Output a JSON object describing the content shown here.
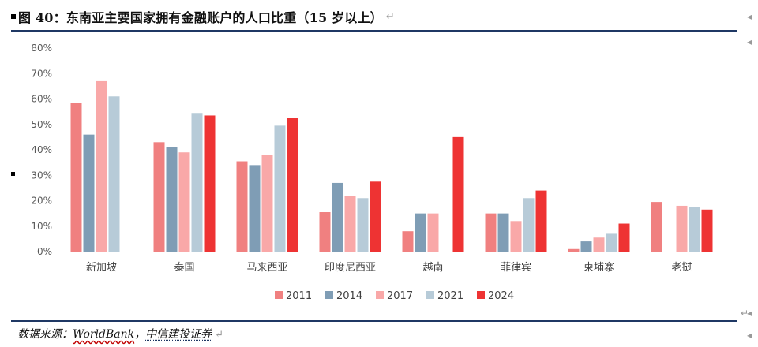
{
  "header": {
    "title": "图 40：东南亚主要国家拥有金融账户的人口比重（15 岁以上）"
  },
  "source": {
    "prefix": "数据来源：",
    "name1": "WorldBank",
    "sep": "，",
    "name2": "中信建投证券"
  },
  "chart_data": {
    "type": "bar",
    "categories": [
      "新加坡",
      "泰国",
      "马来西亚",
      "印度尼西亚",
      "越南",
      "菲律宾",
      "柬埔寨",
      "老挝"
    ],
    "y_ticks": [
      "0%",
      "10%",
      "20%",
      "30%",
      "40%",
      "50%",
      "60%",
      "70%",
      "80%"
    ],
    "ylim": [
      0,
      80
    ],
    "legend_position": "bottom",
    "series": [
      {
        "name": "2011",
        "color": "#f08080",
        "values": [
          58.5,
          43,
          35.5,
          15.5,
          8,
          15,
          1,
          19.5
        ]
      },
      {
        "name": "2014",
        "color": "#7f9db5",
        "values": [
          46,
          41,
          34,
          27,
          15,
          15,
          4,
          null
        ]
      },
      {
        "name": "2017",
        "color": "#f9a8a8",
        "values": [
          67,
          39,
          38,
          22,
          15,
          12,
          5.5,
          18
        ]
      },
      {
        "name": "2021",
        "color": "#b7cbd8",
        "values": [
          61,
          54.5,
          49.5,
          21,
          null,
          21,
          7,
          17.5
        ]
      },
      {
        "name": "2024",
        "color": "#ee3333",
        "values": [
          null,
          53.5,
          52.5,
          27.5,
          45,
          24,
          11,
          16.5
        ]
      }
    ]
  }
}
